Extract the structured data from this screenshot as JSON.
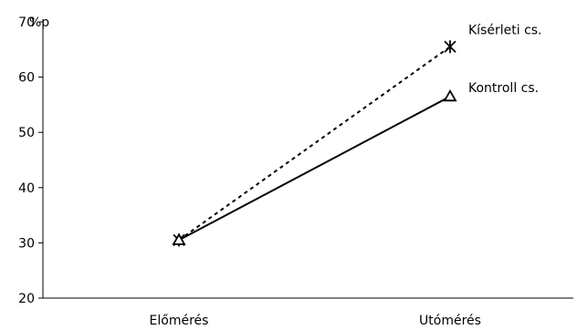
{
  "chart_data": {
    "type": "line",
    "categories": [
      "Előmérés",
      "Utómérés"
    ],
    "ylabel": "%p",
    "ylim": [
      20,
      70
    ],
    "yticks": [
      20,
      30,
      40,
      50,
      60,
      70
    ],
    "grid": false,
    "legend": "direct labels at line ends",
    "series": [
      {
        "name": "Kísérleti cs.",
        "values": [
          30.5,
          65.5
        ],
        "line_style": "dotted",
        "marker": "asterisk",
        "color": "#000000"
      },
      {
        "name": "Kontroll cs.",
        "values": [
          30.5,
          56.5
        ],
        "line_style": "solid",
        "marker": "triangle",
        "color": "#000000"
      }
    ]
  }
}
